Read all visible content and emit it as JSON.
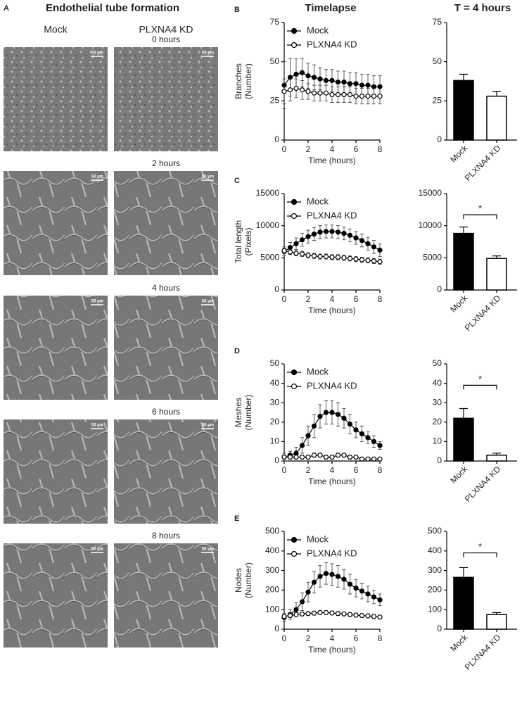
{
  "panel_a": {
    "label": "A",
    "title": "Endothelial tube formation",
    "columns": [
      "Mock",
      "PLXNA4 KD"
    ],
    "rows": [
      {
        "time": "0 hours",
        "scale_bars": [
          "50 µm",
          "50 µm"
        ]
      },
      {
        "time": "2 hours",
        "scale_bars": [
          "50 µm",
          "50 µm"
        ]
      },
      {
        "time": "4 hours",
        "scale_bars": [
          "50 µm",
          "50 µm"
        ]
      },
      {
        "time": "6 hours",
        "scale_bars": [
          "50 µm",
          "50 µm"
        ]
      },
      {
        "time": "8 hours",
        "scale_bars": [
          "50 µm",
          "50 µm"
        ]
      }
    ]
  },
  "column_titles": [
    "Timelapse",
    "T = 4 hours"
  ],
  "chart_data": [
    {
      "type": "line",
      "panel": "B",
      "ylabel": [
        "Branches",
        "(Number)"
      ],
      "xlabel": "Time (hours)",
      "x": [
        0,
        0.5,
        1,
        1.5,
        2,
        2.5,
        3,
        3.5,
        4,
        4.5,
        5,
        5.5,
        6,
        6.5,
        7,
        7.5,
        8
      ],
      "xlim": [
        0,
        8
      ],
      "xticks": [
        0,
        2,
        4,
        6,
        8
      ],
      "ylim": [
        0,
        75
      ],
      "yticks": [
        0,
        25,
        50,
        75
      ],
      "legend": "top-left",
      "series": [
        {
          "name": "Mock",
          "color": "#000000",
          "marker": "filled",
          "values": [
            35,
            40,
            42,
            43,
            41,
            40,
            39,
            38,
            38,
            37,
            37,
            36,
            36,
            35,
            35,
            34,
            34
          ],
          "errors": [
            15,
            12,
            10,
            9,
            8,
            8,
            7,
            7,
            7,
            7,
            7,
            7,
            7,
            7,
            7,
            7,
            7
          ]
        },
        {
          "name": "PLXNA4 KD",
          "color": "#000000",
          "marker": "open",
          "values": [
            31,
            32,
            33,
            32,
            31,
            30,
            30,
            30,
            29,
            29,
            29,
            29,
            28,
            28,
            28,
            28,
            28
          ],
          "errors": [
            8,
            7,
            6,
            6,
            5,
            5,
            5,
            5,
            5,
            5,
            5,
            5,
            5,
            5,
            5,
            5,
            5
          ]
        }
      ]
    },
    {
      "type": "bar",
      "categories": [
        "Mock",
        "PLXNA4 KD"
      ],
      "values": [
        38,
        28
      ],
      "errors": [
        4,
        3
      ],
      "colors": [
        "#000000",
        "#ffffff"
      ],
      "ylim": [
        0,
        75
      ],
      "yticks": [
        0,
        25,
        50,
        75
      ]
    },
    {
      "type": "line",
      "panel": "C",
      "ylabel": [
        "Total length",
        "(Pixels)"
      ],
      "xlabel": "Time (hours)",
      "x": [
        0,
        0.5,
        1,
        1.5,
        2,
        2.5,
        3,
        3.5,
        4,
        4.5,
        5,
        5.5,
        6,
        6.5,
        7,
        7.5,
        8
      ],
      "xlim": [
        0,
        8
      ],
      "xticks": [
        0,
        2,
        4,
        6,
        8
      ],
      "ylim": [
        0,
        15000
      ],
      "yticks": [
        0,
        5000,
        10000,
        15000
      ],
      "legend": "top-left",
      "series": [
        {
          "name": "Mock",
          "color": "#000000",
          "marker": "filled",
          "values": [
            6000,
            6600,
            7200,
            7800,
            8300,
            8700,
            9000,
            9100,
            9100,
            9000,
            8800,
            8500,
            8100,
            7700,
            7200,
            6700,
            6200
          ],
          "errors": [
            700,
            800,
            900,
            1000,
            1000,
            1000,
            1000,
            1000,
            1000,
            1000,
            1000,
            1000,
            1000,
            1000,
            1000,
            1000,
            1000
          ]
        },
        {
          "name": "PLXNA4 KD",
          "color": "#000000",
          "marker": "open",
          "values": [
            6100,
            5900,
            5700,
            5600,
            5400,
            5300,
            5200,
            5200,
            5100,
            5100,
            5000,
            4900,
            4800,
            4700,
            4600,
            4500,
            4400
          ],
          "errors": [
            400,
            400,
            400,
            400,
            400,
            400,
            400,
            400,
            400,
            400,
            400,
            400,
            400,
            400,
            400,
            400,
            400
          ]
        }
      ]
    },
    {
      "type": "bar",
      "categories": [
        "Mock",
        "PLXNA4 KD"
      ],
      "values": [
        8800,
        4900
      ],
      "errors": [
        1000,
        400
      ],
      "colors": [
        "#000000",
        "#ffffff"
      ],
      "ylim": [
        0,
        15000
      ],
      "yticks": [
        0,
        5000,
        10000,
        15000
      ],
      "significance": "*"
    },
    {
      "type": "line",
      "panel": "D",
      "ylabel": [
        "Meshes",
        "(Number)"
      ],
      "xlabel": "Time (hours)",
      "x": [
        0,
        0.5,
        1,
        1.5,
        2,
        2.5,
        3,
        3.5,
        4,
        4.5,
        5,
        5.5,
        6,
        6.5,
        7,
        7.5,
        8
      ],
      "xlim": [
        0,
        8
      ],
      "xticks": [
        0,
        2,
        4,
        6,
        8
      ],
      "ylim": [
        0,
        50
      ],
      "yticks": [
        0,
        10,
        20,
        30,
        40,
        50
      ],
      "legend": "top-left",
      "series": [
        {
          "name": "Mock",
          "color": "#000000",
          "marker": "filled",
          "values": [
            2,
            3,
            4,
            8,
            13,
            18,
            23,
            25,
            25,
            24,
            22,
            19,
            16,
            14,
            12,
            10,
            8
          ],
          "errors": [
            2,
            2,
            3,
            4,
            5,
            6,
            6,
            6,
            6,
            6,
            5,
            5,
            4,
            4,
            3,
            3,
            2
          ]
        },
        {
          "name": "PLXNA4 KD",
          "color": "#000000",
          "marker": "open",
          "values": [
            2,
            2,
            2,
            2,
            2,
            3,
            3,
            2,
            2,
            3,
            3,
            2,
            2,
            1,
            1,
            1,
            1
          ],
          "errors": [
            1,
            1,
            1,
            1,
            1,
            1,
            1,
            1,
            1,
            1,
            1,
            1,
            1,
            1,
            1,
            1,
            1
          ]
        }
      ]
    },
    {
      "type": "bar",
      "categories": [
        "Mock",
        "PLXNA4 KD"
      ],
      "values": [
        22,
        3
      ],
      "errors": [
        5,
        1
      ],
      "colors": [
        "#000000",
        "#ffffff"
      ],
      "ylim": [
        0,
        50
      ],
      "yticks": [
        0,
        10,
        20,
        30,
        40,
        50
      ],
      "significance": "*"
    },
    {
      "type": "line",
      "panel": "E",
      "ylabel": [
        "Nodes",
        "(Number)"
      ],
      "xlabel": "Time (hours)",
      "x": [
        0,
        0.5,
        1,
        1.5,
        2,
        2.5,
        3,
        3.5,
        4,
        4.5,
        5,
        5.5,
        6,
        6.5,
        7,
        7.5,
        8
      ],
      "xlim": [
        0,
        8
      ],
      "xticks": [
        0,
        2,
        4,
        6,
        8
      ],
      "ylim": [
        0,
        500
      ],
      "yticks": [
        0,
        100,
        200,
        300,
        400,
        500
      ],
      "legend": "top-left",
      "series": [
        {
          "name": "Mock",
          "color": "#000000",
          "marker": "filled",
          "values": [
            60,
            75,
            100,
            140,
            190,
            240,
            270,
            285,
            280,
            270,
            255,
            230,
            210,
            195,
            180,
            165,
            150
          ],
          "errors": [
            20,
            25,
            35,
            45,
            50,
            55,
            55,
            55,
            55,
            55,
            50,
            50,
            45,
            40,
            40,
            35,
            30
          ]
        },
        {
          "name": "PLXNA4 KD",
          "color": "#000000",
          "marker": "open",
          "values": [
            65,
            70,
            75,
            78,
            80,
            82,
            85,
            85,
            83,
            80,
            78,
            75,
            72,
            70,
            68,
            65,
            62
          ],
          "errors": [
            10,
            10,
            10,
            10,
            10,
            10,
            10,
            10,
            10,
            10,
            10,
            10,
            10,
            10,
            10,
            10,
            10
          ]
        }
      ]
    },
    {
      "type": "bar",
      "categories": [
        "Mock",
        "PLXNA4 KD"
      ],
      "values": [
        265,
        75
      ],
      "errors": [
        50,
        10
      ],
      "colors": [
        "#000000",
        "#ffffff"
      ],
      "ylim": [
        0,
        500
      ],
      "yticks": [
        0,
        100,
        200,
        300,
        400,
        500
      ],
      "significance": "*"
    }
  ]
}
